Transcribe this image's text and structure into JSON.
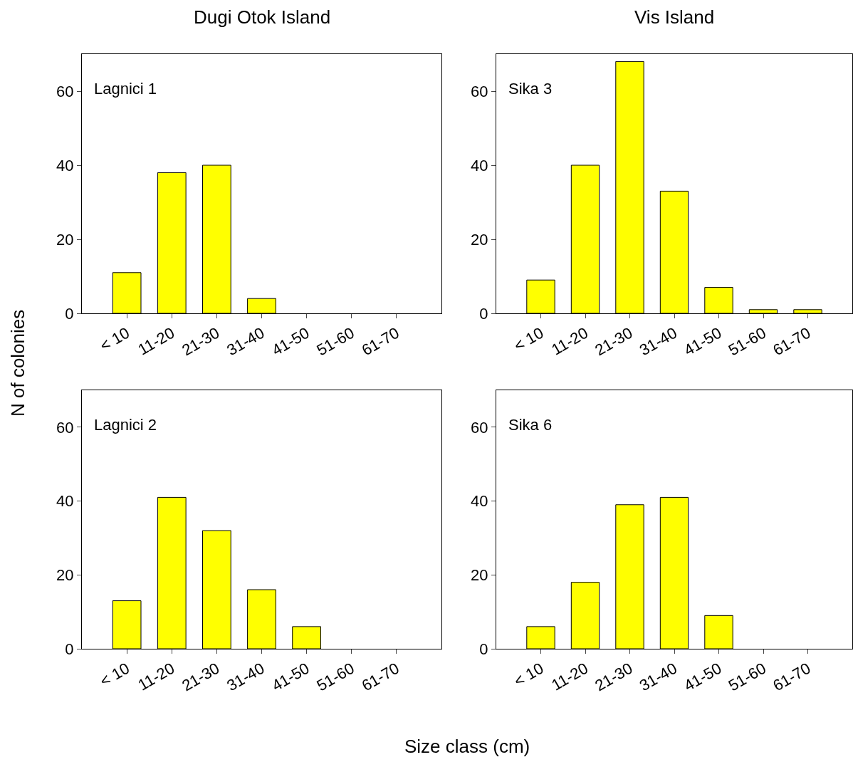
{
  "chart_data": [
    {
      "type": "bar",
      "title": "Dugi Otok Island",
      "ylabel": "N of colonies",
      "annotations": [
        "Lagnici 1"
      ],
      "categories": [
        "< 10",
        "11-20",
        "21-30",
        "31-40",
        "41-50",
        "51-60",
        "61-70"
      ],
      "values": [
        11,
        38,
        40,
        4,
        0,
        0,
        0
      ],
      "color": "#ffff00",
      "ylim": [
        0,
        70
      ],
      "yticks": [
        0,
        20,
        40,
        60
      ]
    },
    {
      "type": "bar",
      "title": "Vis Island",
      "annotations": [
        "Sika 3"
      ],
      "categories": [
        "< 10",
        "11-20",
        "21-30",
        "31-40",
        "41-50",
        "51-60",
        "61-70"
      ],
      "values": [
        9,
        40,
        68,
        33,
        7,
        1,
        1
      ],
      "color": "#ffff00",
      "ylim": [
        0,
        70
      ],
      "yticks": [
        0,
        20,
        40,
        60
      ]
    },
    {
      "type": "bar",
      "xlabel": "Size class (cm)",
      "annotations": [
        "Lagnici 2"
      ],
      "categories": [
        "< 10",
        "11-20",
        "21-30",
        "31-40",
        "41-50",
        "51-60",
        "61-70"
      ],
      "values": [
        13,
        41,
        32,
        16,
        6,
        0,
        0
      ],
      "color": "#ffff00",
      "ylim": [
        0,
        70
      ],
      "yticks": [
        0,
        20,
        40,
        60
      ]
    },
    {
      "type": "bar",
      "annotations": [
        "Sika 6"
      ],
      "categories": [
        "< 10",
        "11-20",
        "21-30",
        "31-40",
        "41-50",
        "51-60",
        "61-70"
      ],
      "values": [
        6,
        18,
        39,
        41,
        9,
        0,
        0
      ],
      "color": "#ffff00",
      "ylim": [
        0,
        70
      ],
      "yticks": [
        0,
        20,
        40,
        60
      ]
    }
  ]
}
